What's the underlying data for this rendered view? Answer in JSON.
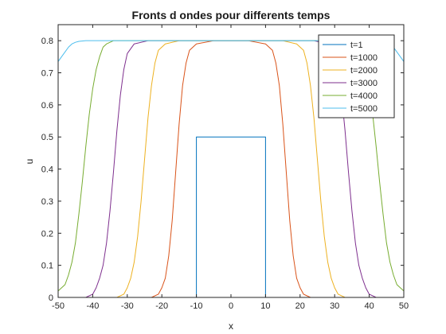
{
  "chart_data": {
    "type": "line",
    "title": "Fronts d ondes pour differents temps",
    "xlabel": "x",
    "ylabel": "u",
    "xlim": [
      -50,
      50
    ],
    "ylim": [
      0,
      0.85
    ],
    "xticks": [
      -50,
      -40,
      -30,
      -20,
      -10,
      0,
      10,
      20,
      30,
      40,
      50
    ],
    "yticks": [
      0,
      0.1,
      0.2,
      0.3,
      0.4,
      0.5,
      0.6,
      0.7,
      0.8
    ],
    "grid": false,
    "legend_position": "top-right",
    "series": [
      {
        "name": "t=1",
        "color": "#0072BD",
        "x": [
          -50,
          -10,
          -10,
          10,
          10,
          50
        ],
        "y": [
          0,
          0,
          0.5,
          0.5,
          0,
          0
        ]
      },
      {
        "name": "t=1000",
        "color": "#D95319",
        "x": [
          -50,
          -23,
          -21,
          -20,
          -19,
          -18,
          -17,
          -16,
          -15,
          -14,
          -13,
          -12,
          -10,
          -5,
          0,
          5,
          10,
          12,
          13,
          14,
          15,
          16,
          17,
          18,
          19,
          20,
          21,
          23,
          50
        ],
        "y": [
          0,
          0,
          0.01,
          0.03,
          0.06,
          0.13,
          0.24,
          0.39,
          0.54,
          0.66,
          0.73,
          0.77,
          0.79,
          0.8,
          0.8,
          0.8,
          0.79,
          0.77,
          0.73,
          0.66,
          0.54,
          0.39,
          0.24,
          0.13,
          0.06,
          0.03,
          0.01,
          0,
          0
        ]
      },
      {
        "name": "t=2000",
        "color": "#EDB120",
        "x": [
          -50,
          -33,
          -31,
          -30,
          -29,
          -28,
          -27,
          -26,
          -25,
          -24,
          -23,
          -22,
          -21,
          -19,
          -15,
          0,
          15,
          19,
          21,
          22,
          23,
          24,
          25,
          26,
          27,
          28,
          29,
          30,
          31,
          33,
          50
        ],
        "y": [
          0,
          0,
          0.01,
          0.03,
          0.06,
          0.11,
          0.19,
          0.3,
          0.43,
          0.56,
          0.66,
          0.73,
          0.77,
          0.79,
          0.8,
          0.8,
          0.8,
          0.79,
          0.77,
          0.73,
          0.66,
          0.56,
          0.43,
          0.3,
          0.19,
          0.11,
          0.06,
          0.03,
          0.01,
          0,
          0
        ]
      },
      {
        "name": "t=3000",
        "color": "#7E2F8E",
        "x": [
          -50,
          -42,
          -40,
          -39,
          -38,
          -37,
          -36,
          -35,
          -34,
          -33,
          -32,
          -31,
          -30,
          -28,
          -24,
          0,
          24,
          28,
          30,
          31,
          32,
          33,
          34,
          35,
          36,
          37,
          38,
          39,
          40,
          42,
          50
        ],
        "y": [
          0,
          0,
          0.01,
          0.03,
          0.06,
          0.1,
          0.17,
          0.27,
          0.39,
          0.52,
          0.63,
          0.71,
          0.76,
          0.79,
          0.8,
          0.8,
          0.8,
          0.79,
          0.76,
          0.71,
          0.63,
          0.52,
          0.39,
          0.27,
          0.17,
          0.1,
          0.06,
          0.03,
          0.01,
          0,
          0
        ]
      },
      {
        "name": "t=4000",
        "color": "#77AC30",
        "x": [
          -50,
          -48,
          -47,
          -46,
          -45,
          -44,
          -43,
          -42,
          -41,
          -40,
          -39,
          -38,
          -37,
          -36,
          -34,
          -30,
          0,
          30,
          34,
          36,
          37,
          38,
          39,
          40,
          41,
          42,
          43,
          44,
          45,
          46,
          47,
          48,
          50
        ],
        "y": [
          0.02,
          0.04,
          0.07,
          0.11,
          0.17,
          0.26,
          0.36,
          0.47,
          0.57,
          0.65,
          0.71,
          0.75,
          0.78,
          0.79,
          0.8,
          0.8,
          0.8,
          0.8,
          0.8,
          0.79,
          0.78,
          0.75,
          0.71,
          0.65,
          0.57,
          0.47,
          0.36,
          0.26,
          0.17,
          0.11,
          0.07,
          0.04,
          0.02
        ]
      },
      {
        "name": "t=5000",
        "color": "#4DBEEE",
        "x": [
          -50,
          -49,
          -48,
          -47,
          -46,
          -45,
          -44,
          -42,
          -40,
          0,
          40,
          42,
          44,
          45,
          46,
          47,
          48,
          49,
          50
        ],
        "y": [
          0.735,
          0.75,
          0.765,
          0.78,
          0.79,
          0.795,
          0.798,
          0.8,
          0.8,
          0.8,
          0.8,
          0.8,
          0.798,
          0.795,
          0.79,
          0.78,
          0.765,
          0.75,
          0.735
        ]
      }
    ]
  }
}
